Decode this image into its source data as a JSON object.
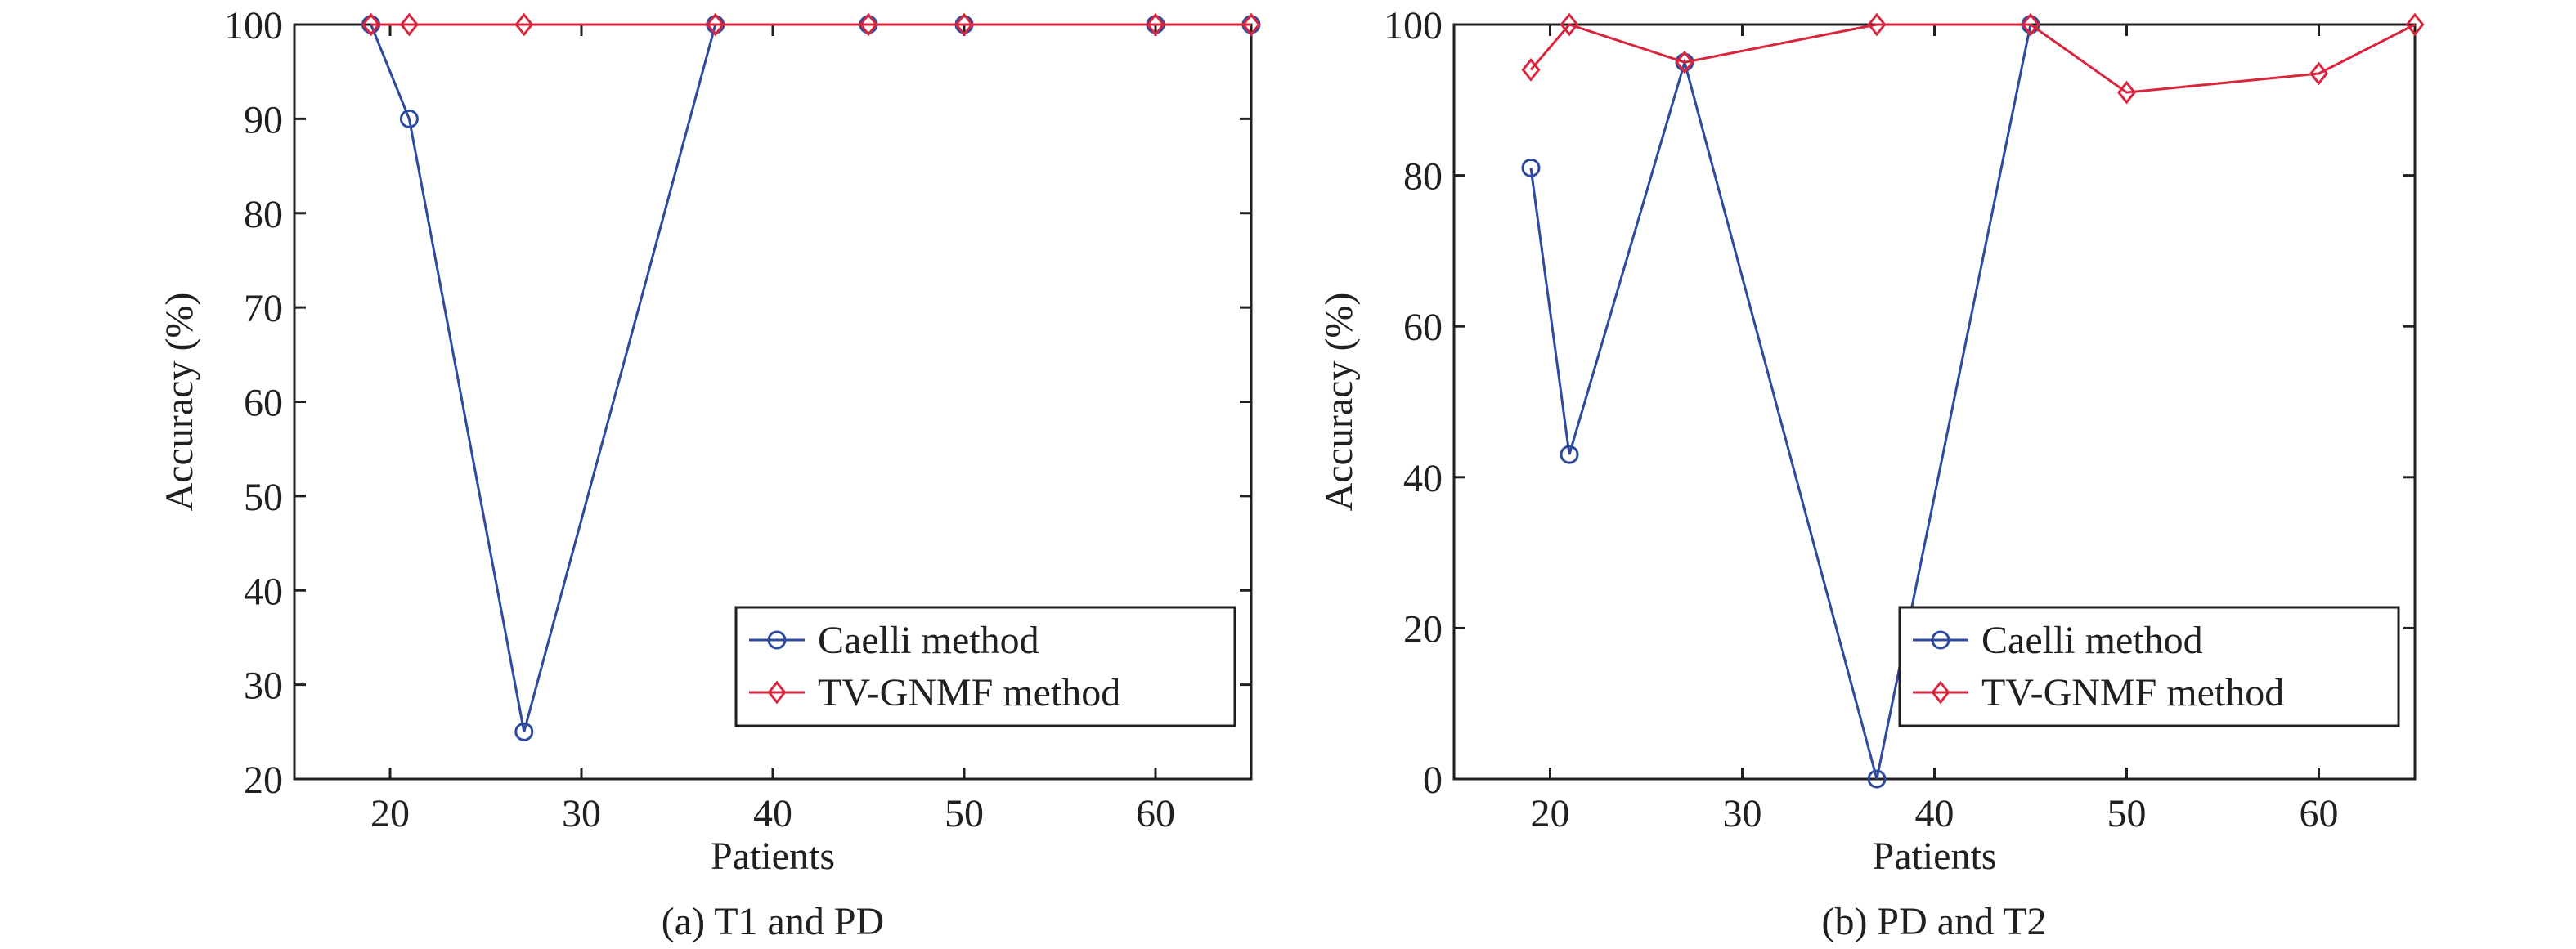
{
  "colors": {
    "caelli": "#2e4a9e",
    "tvgnmf": "#d7263d",
    "axis": "#231f20"
  },
  "chart_data": [
    {
      "type": "line",
      "caption": "(a) T1 and PD",
      "xlabel": "Patients",
      "ylabel": "Accuracy (%)",
      "xlim": [
        15,
        65
      ],
      "ylim": [
        20,
        100
      ],
      "xticks": [
        20,
        30,
        40,
        50,
        60
      ],
      "yticks": [
        20,
        30,
        40,
        50,
        60,
        70,
        80,
        90,
        100
      ],
      "grid": false,
      "legend_position": "bottom-right",
      "series": [
        {
          "name": "Caelli method",
          "marker": "circle",
          "color": "#2e4a9e",
          "x": [
            19,
            21,
            27,
            37,
            45,
            50,
            60,
            65
          ],
          "y": [
            100,
            90,
            25,
            100,
            100,
            100,
            100,
            100
          ]
        },
        {
          "name": "TV-GNMF method",
          "marker": "diamond",
          "color": "#d7263d",
          "x": [
            19,
            21,
            27,
            37,
            45,
            50,
            60,
            65
          ],
          "y": [
            100,
            100,
            100,
            100,
            100,
            100,
            100,
            100
          ]
        }
      ]
    },
    {
      "type": "line",
      "caption": "(b) PD and T2",
      "xlabel": "Patients",
      "ylabel": "Accuracy (%)",
      "xlim": [
        15,
        65
      ],
      "ylim": [
        0,
        100
      ],
      "xticks": [
        20,
        30,
        40,
        50,
        60
      ],
      "yticks": [
        0,
        20,
        40,
        60,
        80,
        100
      ],
      "grid": false,
      "legend_position": "bottom-right",
      "series": [
        {
          "name": "Caelli method",
          "marker": "circle",
          "color": "#2e4a9e",
          "x": [
            19,
            21,
            27,
            37,
            45
          ],
          "y": [
            81,
            43,
            95,
            0,
            100
          ]
        },
        {
          "name": "TV-GNMF method",
          "marker": "diamond",
          "color": "#d7263d",
          "x": [
            19,
            21,
            27,
            37,
            45,
            50,
            60,
            65
          ],
          "y": [
            94,
            100,
            95,
            100,
            100,
            91,
            93.5,
            100
          ]
        }
      ]
    }
  ]
}
